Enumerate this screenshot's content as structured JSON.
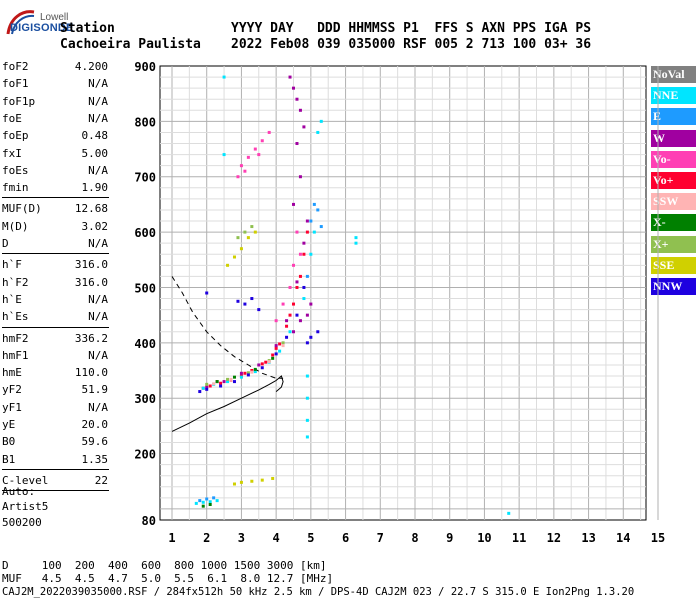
{
  "logo": {
    "top": "Lowell",
    "main": "DIGISONDE"
  },
  "header": {
    "station_label": "Station",
    "station_name": "Cachoeira Paulista",
    "cols_label": "YYYY DAY   DDD HHMMSS P1  FFS S AXN PPS IGA PS",
    "cols_value": "2022 Feb08 039 035000 RSF 005 2 713 100 03+ 36"
  },
  "params_group1": [
    {
      "label": "foF2",
      "value": "4.200"
    },
    {
      "label": "foF1",
      "value": "N/A"
    },
    {
      "label": "foF1p",
      "value": "N/A"
    },
    {
      "label": "foE",
      "value": "N/A"
    },
    {
      "label": "foEp",
      "value": "0.48"
    },
    {
      "label": "fxI",
      "value": "5.00"
    },
    {
      "label": "foEs",
      "value": "N/A"
    },
    {
      "label": "fmin",
      "value": "1.90"
    }
  ],
  "params_group2": [
    {
      "label": "MUF(D)",
      "value": "12.68"
    },
    {
      "label": "M(D)",
      "value": "3.02"
    },
    {
      "label": "D",
      "value": "N/A"
    }
  ],
  "params_group3": [
    {
      "label": "h`F",
      "value": "316.0"
    },
    {
      "label": "h`F2",
      "value": "316.0"
    },
    {
      "label": "h`E",
      "value": "N/A"
    },
    {
      "label": "h`Es",
      "value": "N/A"
    }
  ],
  "params_group4": [
    {
      "label": "hmF2",
      "value": "336.2"
    },
    {
      "label": "hmF1",
      "value": "N/A"
    },
    {
      "label": "hmE",
      "value": "110.0"
    },
    {
      "label": "yF2",
      "value": "51.9"
    },
    {
      "label": "yF1",
      "value": "N/A"
    },
    {
      "label": "yE",
      "value": "20.0"
    },
    {
      "label": "B0",
      "value": "59.6"
    },
    {
      "label": "B1",
      "value": "1.35"
    }
  ],
  "params_group5": [
    {
      "label": "C-level",
      "value": "22"
    }
  ],
  "auto": {
    "line1": "Auto:",
    "line2": "Artist5",
    "line3": "500200"
  },
  "legend": [
    {
      "label": "NoVal",
      "bg": "#808080",
      "fg": "#ffffff"
    },
    {
      "label": "NNE",
      "bg": "#00e5ff",
      "fg": "#ffffff"
    },
    {
      "label": "E",
      "bg": "#1e9bff",
      "fg": "#ffffff"
    },
    {
      "label": "W",
      "bg": "#a000a0",
      "fg": "#ffffff"
    },
    {
      "label": "Vo-",
      "bg": "#ff3fb4",
      "fg": "#ffffff"
    },
    {
      "label": "Vo+",
      "bg": "#ff0030",
      "fg": "#ffffff"
    },
    {
      "label": "SSW",
      "bg": "#ffb4b4",
      "fg": "#ffffff"
    },
    {
      "label": "X-",
      "bg": "#008000",
      "fg": "#ffffff"
    },
    {
      "label": "X+",
      "bg": "#90c050",
      "fg": "#ffffff"
    },
    {
      "label": "SSE",
      "bg": "#d0d000",
      "fg": "#ffffff"
    },
    {
      "label": "NNW",
      "bg": "#1e00e0",
      "fg": "#ffffff"
    }
  ],
  "bottom": {
    "row1": "D     100  200  400  600  800 1000 1500 3000 [km]",
    "row2": "MUF   4.5  4.5  4.7  5.0  5.5  6.1  8.0 12.7 [MHz]",
    "row3": "CAJ2M_2022039035000.RSF / 284fx512h 50 kHz 2.5 km / DPS-4D CAJ2M 023 / 22.7 S 315.0 E Ion2Png 1.3.20"
  },
  "chart_data": {
    "type": "scatter",
    "xlim": [
      1,
      15
    ],
    "ylim": [
      80,
      900
    ],
    "xticks": [
      "1",
      "2",
      "3",
      "4",
      "5",
      "6",
      "7",
      "8",
      "9",
      "10",
      "11",
      "12",
      "13",
      "14",
      "15"
    ],
    "yticks": [
      "80",
      "200",
      "300",
      "400",
      "500",
      "600",
      "700",
      "800",
      "900"
    ],
    "grid": true,
    "series": [
      {
        "name": "Vo+",
        "color": "#ff0030",
        "points": [
          [
            1.9,
            318
          ],
          [
            2.1,
            322
          ],
          [
            2.4,
            327
          ],
          [
            2.7,
            333
          ],
          [
            3.0,
            340
          ],
          [
            3.3,
            350
          ],
          [
            3.6,
            362
          ],
          [
            3.9,
            378
          ],
          [
            4.1,
            398
          ],
          [
            4.3,
            430
          ],
          [
            4.5,
            470
          ],
          [
            4.7,
            520
          ],
          [
            4.8,
            560
          ],
          [
            4.9,
            600
          ],
          [
            2.3,
            330
          ],
          [
            3.1,
            345
          ],
          [
            3.7,
            365
          ],
          [
            4.0,
            390
          ],
          [
            4.4,
            450
          ],
          [
            4.6,
            500
          ]
        ]
      },
      {
        "name": "W",
        "color": "#a000a0",
        "points": [
          [
            2.0,
            320
          ],
          [
            2.5,
            330
          ],
          [
            3.0,
            345
          ],
          [
            3.5,
            360
          ],
          [
            4.0,
            395
          ],
          [
            4.3,
            440
          ],
          [
            4.6,
            510
          ],
          [
            4.8,
            580
          ],
          [
            4.9,
            620
          ],
          [
            4.5,
            420
          ],
          [
            4.7,
            440
          ],
          [
            4.9,
            450
          ],
          [
            5.0,
            470
          ],
          [
            4.4,
            880
          ],
          [
            4.5,
            860
          ],
          [
            4.6,
            840
          ],
          [
            4.7,
            820
          ],
          [
            4.6,
            760
          ],
          [
            4.8,
            790
          ],
          [
            4.7,
            700
          ],
          [
            4.5,
            650
          ]
        ]
      },
      {
        "name": "Vo-",
        "color": "#ff3fb4",
        "points": [
          [
            3.0,
            720
          ],
          [
            3.2,
            735
          ],
          [
            3.4,
            750
          ],
          [
            3.6,
            765
          ],
          [
            3.8,
            780
          ],
          [
            2.9,
            700
          ],
          [
            3.1,
            710
          ],
          [
            3.5,
            740
          ],
          [
            4.5,
            540
          ],
          [
            4.6,
            600
          ],
          [
            4.7,
            560
          ],
          [
            4.4,
            500
          ],
          [
            4.2,
            470
          ],
          [
            4.0,
            440
          ]
        ]
      },
      {
        "name": "NNE",
        "color": "#00e5ff",
        "points": [
          [
            1.7,
            110
          ],
          [
            1.9,
            112
          ],
          [
            2.1,
            113
          ],
          [
            2.3,
            115
          ],
          [
            1.9,
            318
          ],
          [
            2.2,
            325
          ],
          [
            2.6,
            330
          ],
          [
            3.0,
            338
          ],
          [
            3.4,
            348
          ],
          [
            3.8,
            365
          ],
          [
            4.1,
            385
          ],
          [
            4.4,
            420
          ],
          [
            4.8,
            480
          ],
          [
            5.0,
            560
          ],
          [
            5.1,
            600
          ],
          [
            5.2,
            780
          ],
          [
            5.3,
            800
          ],
          [
            4.9,
            340
          ],
          [
            4.9,
            300
          ],
          [
            4.9,
            260
          ],
          [
            4.9,
            230
          ],
          [
            6.3,
            590
          ],
          [
            6.3,
            580
          ],
          [
            10.7,
            92
          ],
          [
            2.5,
            880
          ],
          [
            2.5,
            740
          ]
        ]
      },
      {
        "name": "E",
        "color": "#1e9bff",
        "points": [
          [
            1.8,
            115
          ],
          [
            2.0,
            118
          ],
          [
            2.2,
            120
          ],
          [
            4.9,
            520
          ],
          [
            5.0,
            620
          ],
          [
            5.1,
            650
          ],
          [
            5.2,
            640
          ],
          [
            5.3,
            610
          ]
        ]
      },
      {
        "name": "X-",
        "color": "#008000",
        "points": [
          [
            1.9,
            105
          ],
          [
            2.1,
            108
          ],
          [
            2.3,
            330
          ],
          [
            2.8,
            338
          ],
          [
            3.4,
            352
          ],
          [
            3.9,
            372
          ]
        ]
      },
      {
        "name": "X+",
        "color": "#90c050",
        "points": [
          [
            2.0,
            325
          ],
          [
            2.6,
            334
          ],
          [
            3.2,
            346
          ],
          [
            3.8,
            368
          ],
          [
            4.2,
            400
          ],
          [
            2.9,
            590
          ],
          [
            3.1,
            600
          ],
          [
            3.3,
            610
          ]
        ]
      },
      {
        "name": "SSE",
        "color": "#d0d000",
        "points": [
          [
            2.8,
            145
          ],
          [
            3.0,
            148
          ],
          [
            3.3,
            150
          ],
          [
            3.6,
            152
          ],
          [
            3.9,
            155
          ],
          [
            2.6,
            540
          ],
          [
            2.8,
            555
          ],
          [
            3.0,
            570
          ],
          [
            3.2,
            590
          ],
          [
            3.4,
            600
          ]
        ]
      },
      {
        "name": "NNW",
        "color": "#1e00e0",
        "points": [
          [
            1.8,
            312
          ],
          [
            2.0,
            316
          ],
          [
            2.4,
            322
          ],
          [
            2.8,
            330
          ],
          [
            3.2,
            342
          ],
          [
            3.6,
            355
          ],
          [
            4.0,
            380
          ],
          [
            4.3,
            410
          ],
          [
            4.6,
            450
          ],
          [
            4.8,
            500
          ],
          [
            2.9,
            475
          ],
          [
            3.1,
            470
          ],
          [
            3.3,
            480
          ],
          [
            3.5,
            460
          ],
          [
            2.0,
            490
          ],
          [
            4.9,
            400
          ],
          [
            5.0,
            410
          ],
          [
            5.2,
            420
          ]
        ]
      },
      {
        "name": "SSW",
        "color": "#ffb4b4",
        "points": [
          [
            2.2,
            326
          ],
          [
            2.7,
            334
          ],
          [
            3.3,
            347
          ],
          [
            3.8,
            366
          ],
          [
            4.2,
            395
          ]
        ]
      }
    ],
    "profile_solid": [
      [
        1.0,
        240
      ],
      [
        1.5,
        255
      ],
      [
        2.0,
        272
      ],
      [
        2.5,
        285
      ],
      [
        3.0,
        300
      ],
      [
        3.5,
        315
      ],
      [
        3.8,
        325
      ],
      [
        4.0,
        332
      ],
      [
        4.15,
        340
      ],
      [
        4.2,
        330
      ],
      [
        4.15,
        320
      ],
      [
        4.0,
        312
      ]
    ],
    "profile_dashed": [
      [
        1.0,
        520
      ],
      [
        1.3,
        490
      ],
      [
        1.6,
        455
      ],
      [
        2.0,
        420
      ],
      [
        2.4,
        395
      ],
      [
        2.8,
        375
      ],
      [
        3.2,
        360
      ],
      [
        3.6,
        345
      ],
      [
        4.0,
        336
      ],
      [
        4.2,
        336
      ]
    ]
  }
}
